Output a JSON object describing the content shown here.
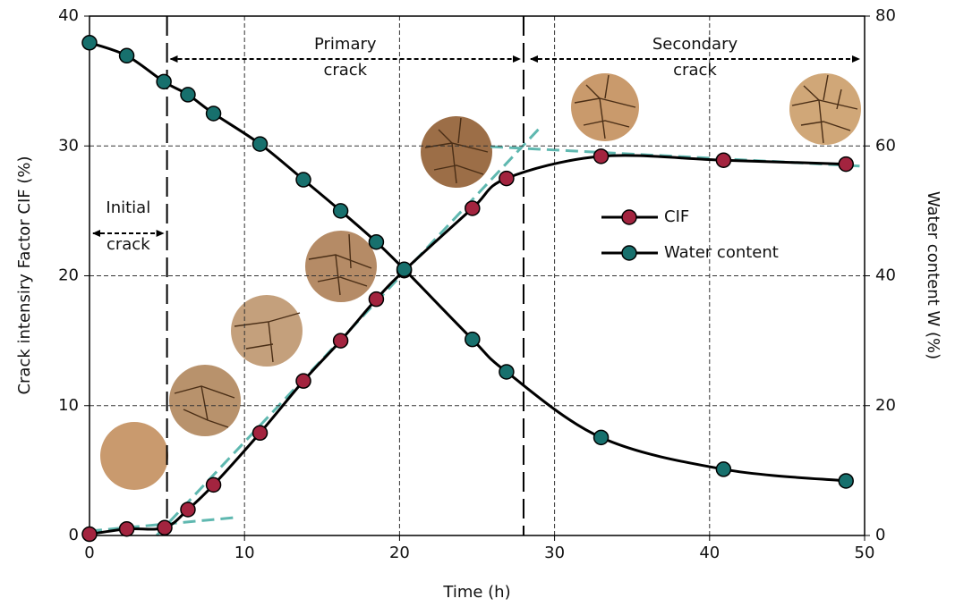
{
  "chart_data": {
    "type": "line",
    "x_label": "Time (h)",
    "y_label": "Crack intensiry Factor CIF (%)",
    "y2_label": "Water content W (%)",
    "xlim": [
      0,
      50
    ],
    "xticks": [
      0,
      10,
      20,
      30,
      40,
      50
    ],
    "ylim": [
      0,
      40
    ],
    "yticks": [
      0,
      10,
      20,
      30,
      40
    ],
    "y2lim": [
      0,
      80
    ],
    "y2ticks": [
      0,
      20,
      40,
      60,
      80
    ],
    "grid": true,
    "phase_boundaries": [
      5,
      28
    ],
    "annotations": [
      [
        "Initial",
        "crack"
      ],
      [
        "Primary",
        "crack"
      ],
      [
        "Secondary",
        "crack"
      ]
    ],
    "series": [
      {
        "name": "CIF",
        "color": "#a3243f",
        "x": [
          0,
          2.4,
          4.85,
          6.35,
          8.0,
          11.0,
          13.8,
          16.2,
          18.5,
          20.3,
          24.7,
          26.9,
          33.0,
          40.9,
          48.8
        ],
        "values": [
          0.1,
          0.5,
          0.6,
          2.0,
          3.9,
          7.9,
          11.9,
          15.0,
          18.2,
          20.4,
          25.2,
          27.5,
          29.2,
          28.9,
          28.6
        ]
      },
      {
        "name": "Water content",
        "color": "#17706d",
        "axis": "y2",
        "x": [
          0,
          2.4,
          4.8,
          6.35,
          8.0,
          11.0,
          13.8,
          16.2,
          18.5,
          20.3,
          24.7,
          26.9,
          33.0,
          40.9,
          48.8
        ],
        "values": [
          75.9,
          73.9,
          69.9,
          67.9,
          65.0,
          60.3,
          54.8,
          50.0,
          45.2,
          41.0,
          30.2,
          25.2,
          15.1,
          10.2,
          8.4
        ]
      }
    ]
  }
}
